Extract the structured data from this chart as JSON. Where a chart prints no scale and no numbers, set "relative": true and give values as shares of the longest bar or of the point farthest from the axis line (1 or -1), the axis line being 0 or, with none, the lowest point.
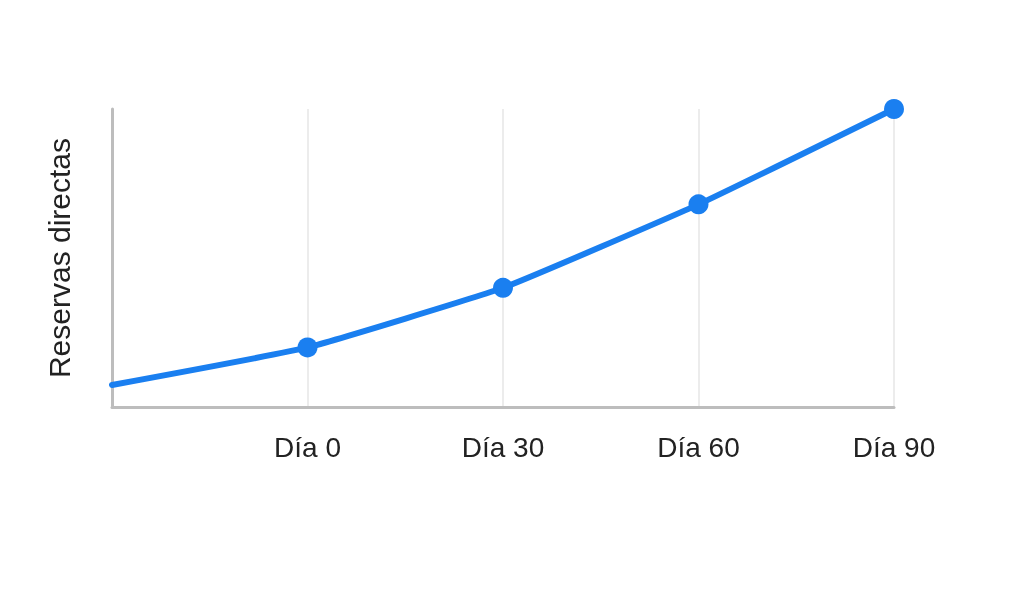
{
  "chart_data": {
    "type": "line",
    "relative": true,
    "ylabel": "Reservas directas",
    "categories": [
      null,
      "Día 0",
      "Día 30",
      "Día 60",
      "Día 90"
    ],
    "series": [
      {
        "color": "#1a7ff0",
        "values": [
          0.074,
          0.2,
          0.4,
          0.68,
          1
        ]
      }
    ],
    "marker": "circle",
    "line_style": "solid",
    "grid": "x"
  }
}
